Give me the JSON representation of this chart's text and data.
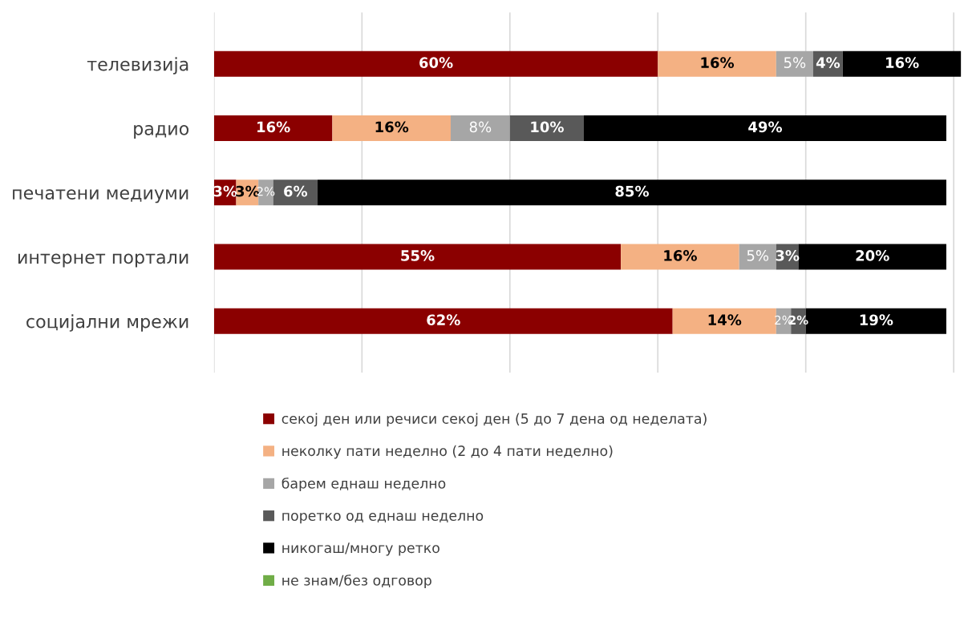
{
  "chart_data": {
    "type": "bar",
    "orientation": "horizontal",
    "stacked": true,
    "categories": [
      "телевизија",
      "радио",
      "печатени медиуми",
      "интернет портали",
      "социјални мрежи"
    ],
    "series": [
      {
        "name": "секој ден или речиси секој ден (5 до 7 дена од неделата)",
        "color": "#8b0000",
        "values": [
          60,
          16,
          3,
          55,
          62
        ],
        "value_labels": [
          "60%",
          "16%",
          "3%",
          "55%",
          "62%"
        ]
      },
      {
        "name": "неколку пати неделно (2 до 4 пати неделно)",
        "color": "#f4b183",
        "values": [
          16,
          16,
          3,
          16,
          14
        ],
        "value_labels": [
          "16%",
          "16%",
          "3%",
          "16%",
          "14%"
        ]
      },
      {
        "name": "барем еднаш неделно",
        "color": "#a6a6a6",
        "values": [
          5,
          8,
          2,
          5,
          2
        ],
        "value_labels": [
          "5%",
          "8%",
          "2%",
          "5%",
          "2%"
        ]
      },
      {
        "name": "поретко од еднаш неделно",
        "color": "#595959",
        "values": [
          4,
          10,
          6,
          3,
          2
        ],
        "value_labels": [
          "4%",
          "10%",
          "6%",
          "3%",
          "2%"
        ]
      },
      {
        "name": "никогаш/многу ретко",
        "color": "#000000",
        "values": [
          16,
          49,
          85,
          20,
          19
        ],
        "value_labels": [
          "16%",
          "49%",
          "85%",
          "20%",
          "19%"
        ]
      },
      {
        "name": "не знам/без одговор",
        "color": "#70ad47",
        "values": [
          null,
          null,
          null,
          null,
          null
        ]
      }
    ],
    "grid": "x",
    "tick_labels": "y",
    "legend": "bottom"
  }
}
